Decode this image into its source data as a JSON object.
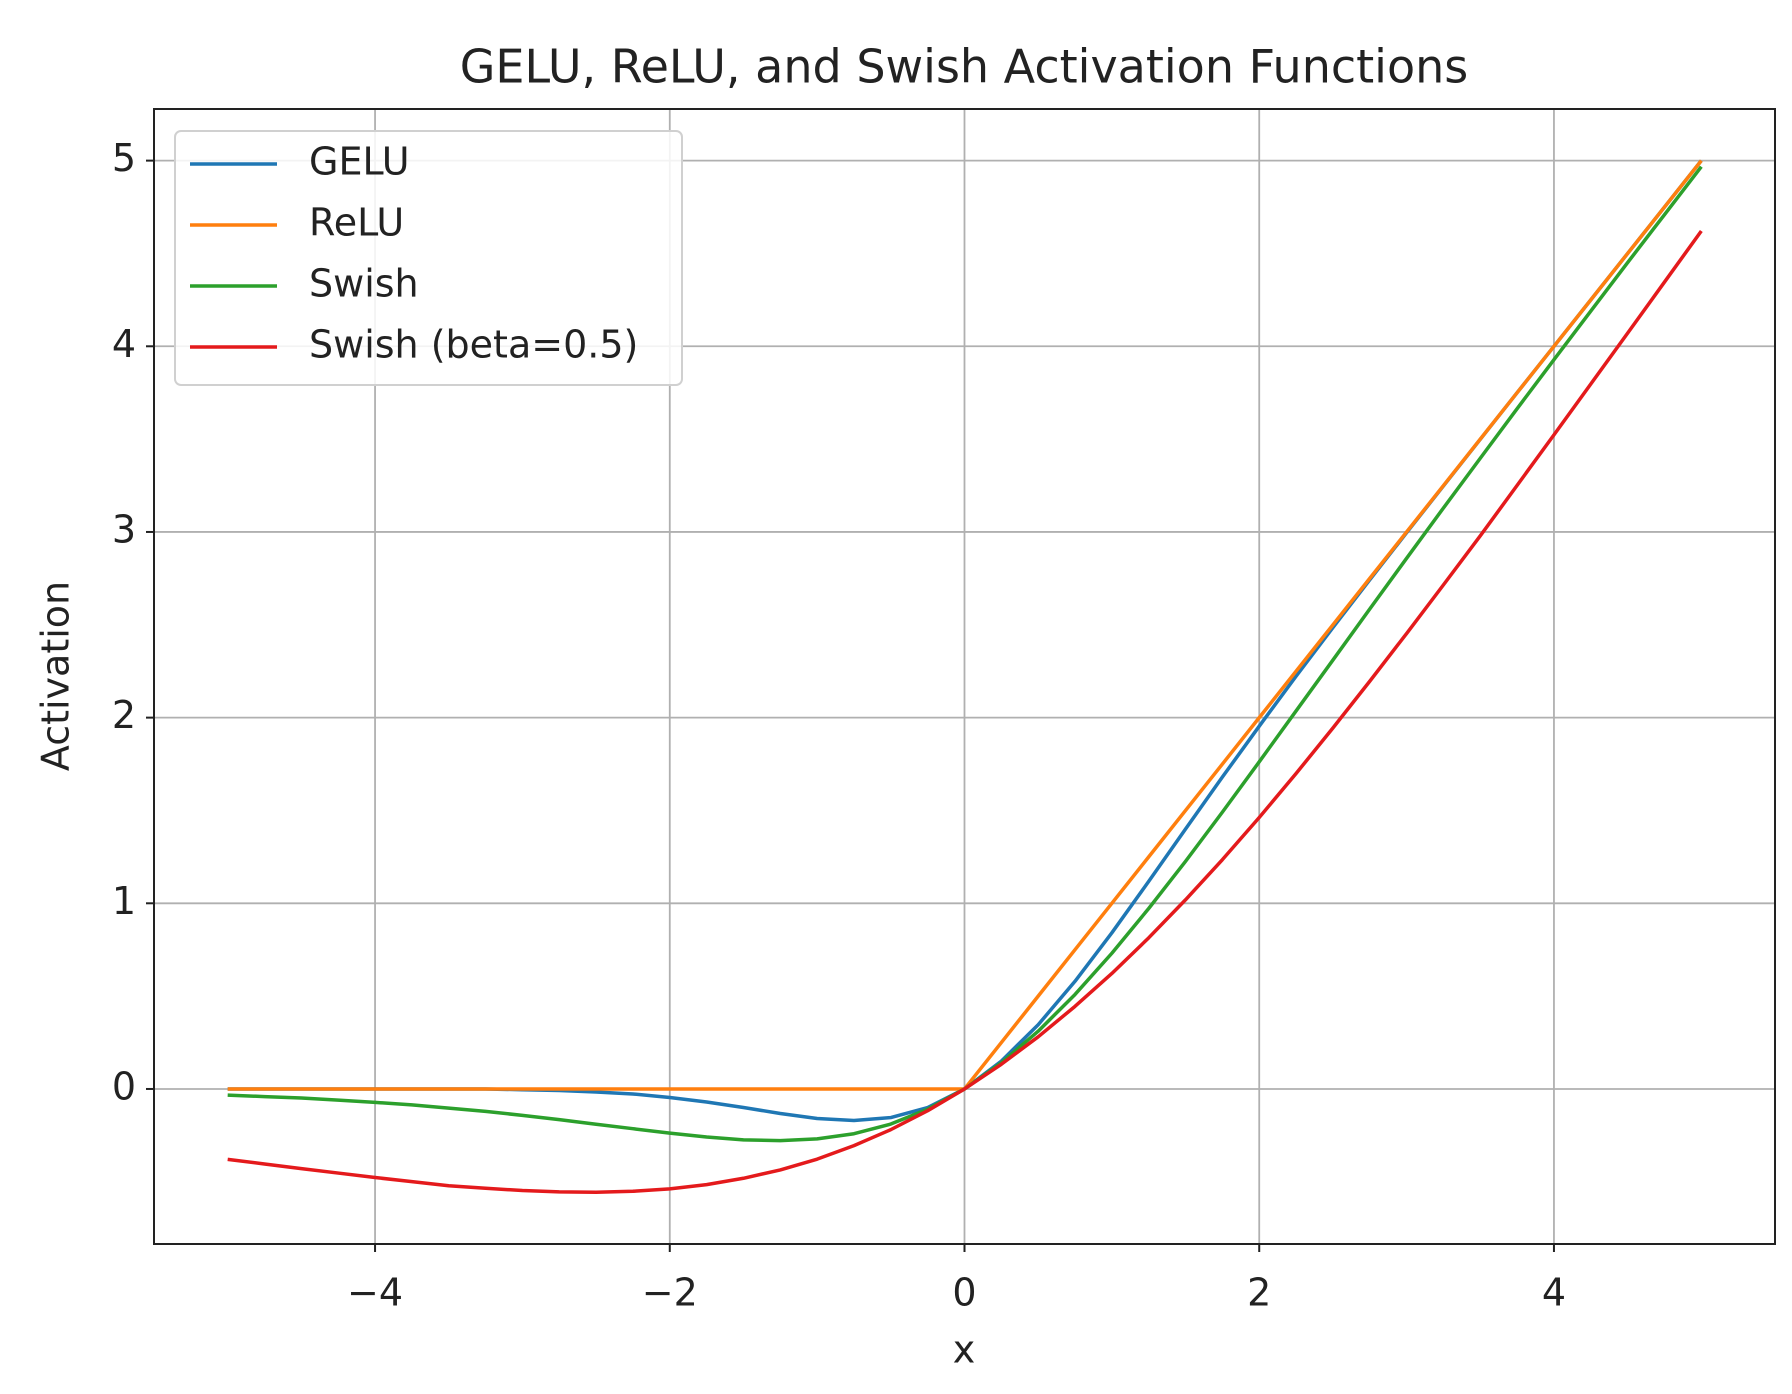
{
  "chart_data": {
    "type": "line",
    "title": "GELU, ReLU, and Swish Activation Functions",
    "xlabel": "x",
    "ylabel": "Activation",
    "x": [
      -5,
      -4.75,
      -4.5,
      -4.25,
      -4,
      -3.75,
      -3.5,
      -3.25,
      -3,
      -2.75,
      -2.5,
      -2.25,
      -2,
      -1.75,
      -1.5,
      -1.25,
      -1,
      -0.75,
      -0.5,
      -0.25,
      0,
      0.25,
      0.5,
      0.75,
      1,
      1.25,
      1.5,
      1.75,
      2,
      2.25,
      2.5,
      2.75,
      3,
      3.25,
      3.5,
      3.75,
      4,
      4.25,
      4.5,
      4.75,
      5
    ],
    "series": [
      {
        "name": "GELU",
        "color": "#1f77b4",
        "values": [
          0,
          0,
          0,
          0,
          0,
          0,
          0,
          0,
          -0.004,
          -0.008,
          -0.016,
          -0.027,
          -0.046,
          -0.07,
          -0.1,
          -0.132,
          -0.159,
          -0.17,
          -0.154,
          -0.1,
          0,
          0.15,
          0.346,
          0.58,
          0.841,
          1.118,
          1.4,
          1.68,
          1.954,
          2.223,
          2.485,
          2.742,
          2.996,
          3.248,
          3.499,
          3.75,
          4,
          4.25,
          4.5,
          4.75,
          5
        ]
      },
      {
        "name": "ReLU",
        "color": "#ff7f0e",
        "values": [
          0,
          0,
          0,
          0,
          0,
          0,
          0,
          0,
          0,
          0,
          0,
          0,
          0,
          0,
          0,
          0,
          0,
          0,
          0,
          0,
          0,
          0.25,
          0.5,
          0.75,
          1,
          1.25,
          1.5,
          1.75,
          2,
          2.25,
          2.5,
          2.75,
          3,
          3.25,
          3.5,
          3.75,
          4,
          4.25,
          4.5,
          4.75,
          5
        ]
      },
      {
        "name": "Swish",
        "color": "#2ca02c",
        "values": [
          -0.033,
          -0.041,
          -0.049,
          -0.06,
          -0.072,
          -0.086,
          -0.103,
          -0.121,
          -0.142,
          -0.165,
          -0.19,
          -0.214,
          -0.238,
          -0.259,
          -0.274,
          -0.278,
          -0.269,
          -0.241,
          -0.189,
          -0.109,
          0,
          0.141,
          0.311,
          0.509,
          0.731,
          0.972,
          1.226,
          1.491,
          1.762,
          2.036,
          2.31,
          2.585,
          2.858,
          3.129,
          3.397,
          3.664,
          3.928,
          4.19,
          4.451,
          4.709,
          4.967
        ]
      },
      {
        "name": "Swish (beta=0.5)",
        "color": "#e41a1c",
        "values": [
          -0.379,
          -0.404,
          -0.429,
          -0.453,
          -0.477,
          -0.499,
          -0.521,
          -0.535,
          -0.547,
          -0.554,
          -0.556,
          -0.551,
          -0.538,
          -0.515,
          -0.481,
          -0.436,
          -0.378,
          -0.305,
          -0.219,
          -0.117,
          0,
          0.133,
          0.281,
          0.445,
          0.622,
          0.814,
          1.019,
          1.235,
          1.462,
          1.699,
          1.944,
          2.196,
          2.453,
          2.715,
          2.979,
          3.251,
          3.523,
          3.797,
          4.071,
          4.346,
          4.621
        ]
      }
    ],
    "xlim": [
      -5.5,
      5.5
    ],
    "ylim": [
      -0.835,
      5.278
    ],
    "xticks": [
      {
        "value": -4,
        "label": "−4"
      },
      {
        "value": -2,
        "label": "−2"
      },
      0,
      2,
      4
    ],
    "yticks": [
      0,
      1,
      2,
      3,
      4,
      5
    ],
    "grid": true,
    "legend": "upper left"
  }
}
